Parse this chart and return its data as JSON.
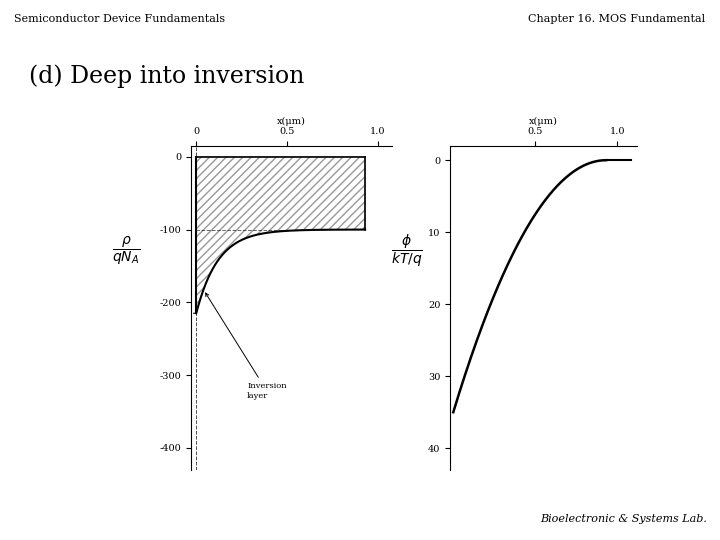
{
  "title_left": "Semiconductor Device Fundamentals",
  "title_right": "Chapter 16. MOS Fundamental",
  "subtitle": "(d) Deep into inversion",
  "footer": "Bioelectronic & Systems Lab.",
  "plot1": {
    "xlabel": "x(μm)",
    "xticks": [
      0,
      0.5,
      1.0
    ],
    "yticks": [
      0,
      -100,
      -200,
      -300,
      -400
    ],
    "xlim": [
      -0.03,
      1.08
    ],
    "ylim": [
      -430,
      15
    ],
    "xdep": 0.93,
    "inv_depth": -215,
    "dep_level": -100
  },
  "plot2": {
    "xlabel": "x(μm)",
    "xticks": [
      0.5,
      1.0
    ],
    "yticks": [
      0,
      10,
      20,
      30,
      40
    ],
    "xlim": [
      -0.02,
      1.12
    ],
    "ylim": [
      43,
      -2
    ],
    "xdep": 0.93,
    "phi_surface": 35.0
  },
  "line_color": "#000000",
  "hatch_color": "#999999",
  "font_size_header": 8,
  "font_size_subtitle": 17,
  "font_size_footer": 8,
  "font_size_axis": 7,
  "font_size_tick": 7,
  "font_size_ylabel": 10
}
